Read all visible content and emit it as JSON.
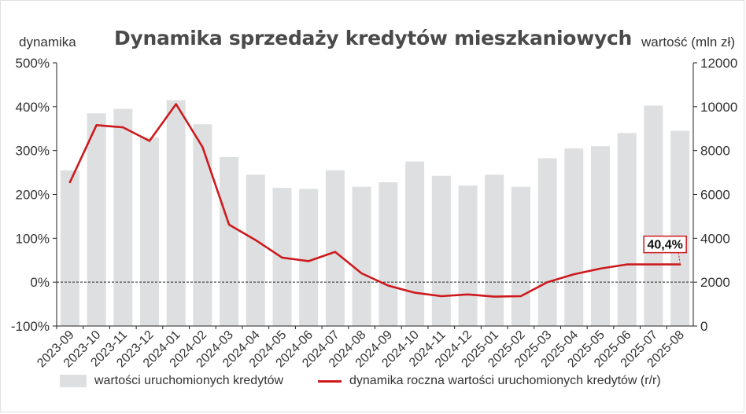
{
  "chart_data": {
    "type": "bar",
    "title": "Dynamika sprzedaży kredytów mieszkaniowych",
    "ylabel_left": "dynamika",
    "ylabel_right": "wartość (mln zł)",
    "categories": [
      "2023-09",
      "2023-10",
      "2023-11",
      "2023-12",
      "2024-01",
      "2024-02",
      "2024-03",
      "2024-04",
      "2024-05",
      "2024-06",
      "2024-07",
      "2024-08",
      "2024-09",
      "2024-10",
      "2024-11",
      "2024-12",
      "2025-01",
      "2025-02",
      "2025-03",
      "2025-04",
      "2025-05",
      "2025-06",
      "2025-07",
      "2025-08"
    ],
    "left_axis": {
      "ylim": [
        -100,
        500
      ],
      "ticks": [
        -100,
        0,
        100,
        200,
        300,
        400,
        500
      ],
      "tick_labels": [
        "-100%",
        "0%",
        "100%",
        "200%",
        "300%",
        "400%",
        "500%"
      ]
    },
    "right_axis": {
      "ylim": [
        0,
        12000
      ],
      "ticks": [
        0,
        2000,
        4000,
        6000,
        8000,
        10000,
        12000
      ],
      "tick_labels": [
        "0",
        "2000",
        "4000",
        "6000",
        "8000",
        "10000",
        "12000"
      ]
    },
    "series": [
      {
        "name": "wartości uruchomionych kredytów",
        "type": "bar",
        "axis": "right",
        "color": "#dedfe0",
        "values": [
          7100,
          9700,
          9900,
          8600,
          10300,
          9200,
          7700,
          6900,
          6300,
          6250,
          7100,
          6350,
          6550,
          7500,
          6850,
          6400,
          6900,
          6350,
          7650,
          8100,
          8200,
          8800,
          10050,
          8900
        ]
      },
      {
        "name": "dynamika roczna wartości uruchomionych kredytów (r/r)",
        "type": "line",
        "axis": "left",
        "color": "#cc1a1e",
        "values": [
          228,
          358,
          353,
          322,
          406,
          308,
          131,
          96,
          56,
          48,
          69,
          20,
          -8,
          -24,
          -32,
          -28,
          -33,
          -32,
          0,
          18,
          31,
          40.4,
          40.4,
          40.4
        ]
      }
    ],
    "annotation": {
      "text": "40,4%",
      "category": "2025-08",
      "value": 40.4
    },
    "zero_line": "dashed",
    "grid": false,
    "legend_position": "bottom"
  }
}
